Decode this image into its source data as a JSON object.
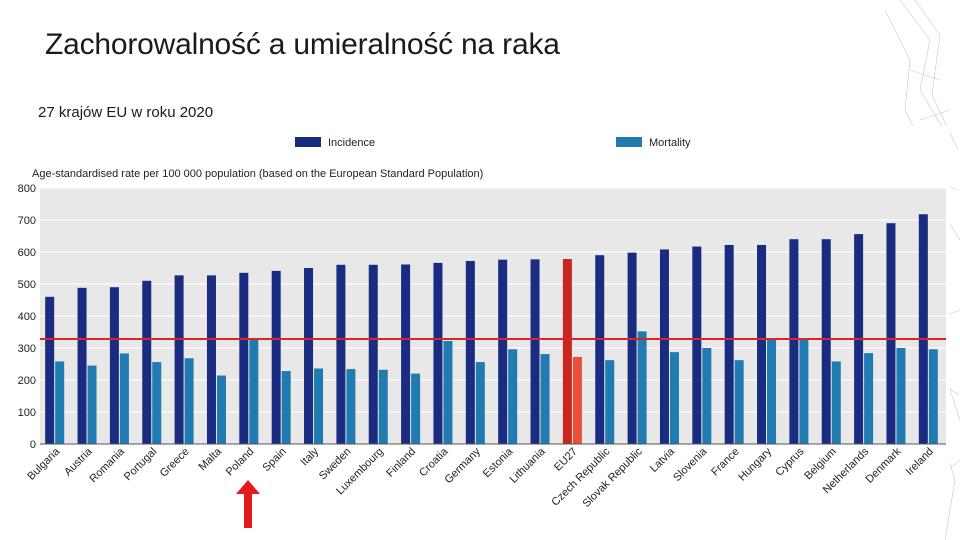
{
  "slide": {
    "title": "Zachorowalność a umieralność na raka",
    "subtitle": "27 krajów EU w roku 2020"
  },
  "colors": {
    "incidence": "#1a2c80",
    "mortality": "#1f7bb0",
    "eu_incidence": "#c8261f",
    "eu_mortality": "#e8503a",
    "reference_line": "#d9252a",
    "arrow": "#e31b1b",
    "panel_bg": "#e8e8e8",
    "gridline": "#ffffff"
  },
  "chart_data": {
    "type": "bar",
    "ylabel": "Age-standardised rate per 100 000 population (based on the European Standard Population)",
    "ylim": [
      0,
      800
    ],
    "yticks": [
      0,
      100,
      200,
      300,
      400,
      500,
      600,
      700,
      800
    ],
    "grid": true,
    "legend": "top",
    "highlight_category": "EU27",
    "marked_category": "Poland",
    "reference_line_value": 328,
    "categories": [
      "Bulgaria",
      "Austria",
      "Romania",
      "Portugal",
      "Greece",
      "Malta",
      "Poland",
      "Spain",
      "Italy",
      "Sweden",
      "Luxembourg",
      "Finland",
      "Croatia",
      "Germany",
      "Estonia",
      "Lithuania",
      "EU27",
      "Czech Republic",
      "Slovak Republic",
      "Latvia",
      "Slovenia",
      "France",
      "Hungary",
      "Cyprus",
      "Belgium",
      "Netherlands",
      "Denmark",
      "Ireland"
    ],
    "series": [
      {
        "name": "Incidence",
        "values": [
          460,
          488,
          490,
          510,
          527,
          527,
          535,
          541,
          550,
          560,
          560,
          561,
          566,
          572,
          576,
          577,
          578,
          590,
          598,
          608,
          617,
          622,
          622,
          640,
          640,
          656,
          690,
          718
        ]
      },
      {
        "name": "Mortality",
        "values": [
          258,
          245,
          283,
          256,
          268,
          214,
          326,
          228,
          236,
          234,
          232,
          220,
          322,
          256,
          296,
          281,
          272,
          262,
          352,
          287,
          300,
          262,
          326,
          326,
          258,
          284,
          300,
          296
        ]
      }
    ]
  }
}
